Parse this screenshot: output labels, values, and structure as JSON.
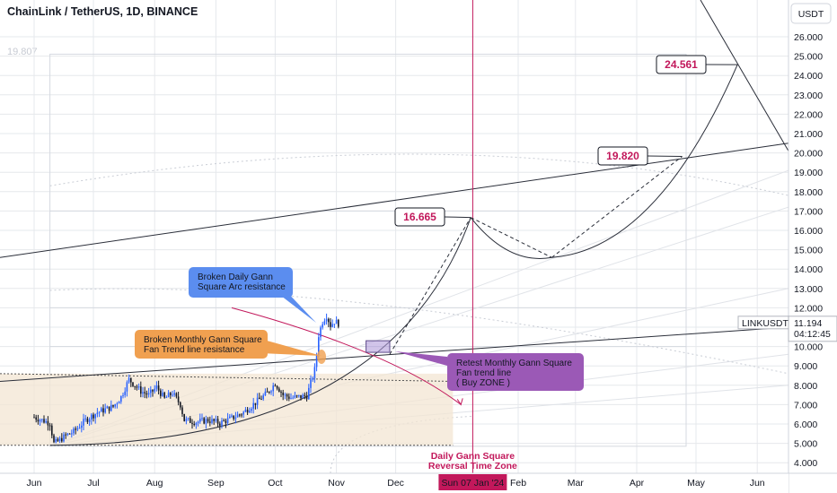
{
  "header": {
    "title": "ChainLink / TetherUS, 1D, BINANCE",
    "watermark_value": "19.807"
  },
  "currency_button": {
    "label": "USDT"
  },
  "colors": {
    "up": "#2962ff",
    "down": "#131722",
    "accent_red": "#c2185b",
    "grid": "#e6e8ec",
    "blue_box": "#5b8def",
    "orange_box": "#f0a050",
    "purple_box": "#9b59b6",
    "range_fill": "#f3e6d3"
  },
  "chart_data": {
    "type": "candlestick",
    "symbol": "LINKUSDT",
    "y_ticks": [
      "26.000",
      "25.000",
      "24.000",
      "23.000",
      "22.000",
      "21.000",
      "20.000",
      "19.000",
      "18.000",
      "17.000",
      "16.000",
      "15.000",
      "14.000",
      "13.000",
      "12.000",
      "11.000",
      "10.000",
      "9.000",
      "8.000",
      "7.000",
      "6.000",
      "5.000",
      "4.000"
    ],
    "ylim": [
      3.5,
      26.8
    ],
    "x_ticks": [
      "Jun",
      "Jul",
      "Aug",
      "Sep",
      "Oct",
      "Nov",
      "Dec",
      "Feb",
      "Mar",
      "Apr",
      "May",
      "Jun"
    ],
    "x_tick_days": [
      0,
      30,
      61,
      92,
      122,
      153,
      183,
      245,
      274,
      305,
      335,
      366
    ],
    "price_series": [
      {
        "day": 0,
        "price": 6.35
      },
      {
        "day": 4,
        "price": 6.2
      },
      {
        "day": 8,
        "price": 6.05
      },
      {
        "day": 10,
        "price": 5.0
      },
      {
        "day": 12,
        "price": 5.1
      },
      {
        "day": 16,
        "price": 5.4
      },
      {
        "day": 20,
        "price": 5.6
      },
      {
        "day": 26,
        "price": 6.2
      },
      {
        "day": 32,
        "price": 6.6
      },
      {
        "day": 40,
        "price": 6.9
      },
      {
        "day": 44,
        "price": 7.4
      },
      {
        "day": 48,
        "price": 8.3
      },
      {
        "day": 54,
        "price": 7.7
      },
      {
        "day": 58,
        "price": 7.5
      },
      {
        "day": 62,
        "price": 7.9
      },
      {
        "day": 66,
        "price": 7.3
      },
      {
        "day": 70,
        "price": 7.6
      },
      {
        "day": 74,
        "price": 7.0
      },
      {
        "day": 76,
        "price": 6.2
      },
      {
        "day": 82,
        "price": 6.1
      },
      {
        "day": 88,
        "price": 6.2
      },
      {
        "day": 94,
        "price": 6.05
      },
      {
        "day": 100,
        "price": 6.3
      },
      {
        "day": 106,
        "price": 6.6
      },
      {
        "day": 112,
        "price": 7.1
      },
      {
        "day": 118,
        "price": 7.6
      },
      {
        "day": 122,
        "price": 8.1
      },
      {
        "day": 126,
        "price": 7.5
      },
      {
        "day": 130,
        "price": 7.35
      },
      {
        "day": 134,
        "price": 7.4
      },
      {
        "day": 138,
        "price": 7.45
      },
      {
        "day": 142,
        "price": 8.8
      },
      {
        "day": 143,
        "price": 9.6
      },
      {
        "day": 144,
        "price": 10.6
      },
      {
        "day": 146,
        "price": 11.3
      },
      {
        "day": 148,
        "price": 11.6
      },
      {
        "day": 150,
        "price": 11.1
      },
      {
        "day": 152,
        "price": 11.3
      },
      {
        "day": 154,
        "price": 11.19
      }
    ],
    "last_price": {
      "symbol": "LINKUSDT",
      "price": "11.194",
      "countdown": "04:12:45"
    },
    "targets": [
      {
        "label": "16.665",
        "day": 221,
        "price": 16.665
      },
      {
        "label": "19.820",
        "day": 328,
        "price": 19.82
      },
      {
        "label": "24.561",
        "day": 356,
        "price": 24.561
      }
    ],
    "projection_path": [
      {
        "day": 180,
        "price": 9.6
      },
      {
        "day": 221,
        "price": 16.665
      },
      {
        "day": 262,
        "price": 14.6
      },
      {
        "day": 328,
        "price": 19.82
      },
      {
        "day": 356,
        "price": 24.561
      }
    ],
    "vertical_marker": {
      "day": 222,
      "label": "Sun 07 Jan '24"
    },
    "zone_label_line1": "Daily Gann Square",
    "zone_label_line2": "Reversal Time Zone",
    "annotations": {
      "blue": [
        "Broken Daily Gann",
        "Square Arc resistance"
      ],
      "orange": [
        "Broken Monthly Gann Square",
        "Fan Trend line resistance"
      ],
      "purple": [
        "Retest Monthly Gann Square",
        "Fan trend line",
        "( Buy ZONE )"
      ]
    }
  }
}
